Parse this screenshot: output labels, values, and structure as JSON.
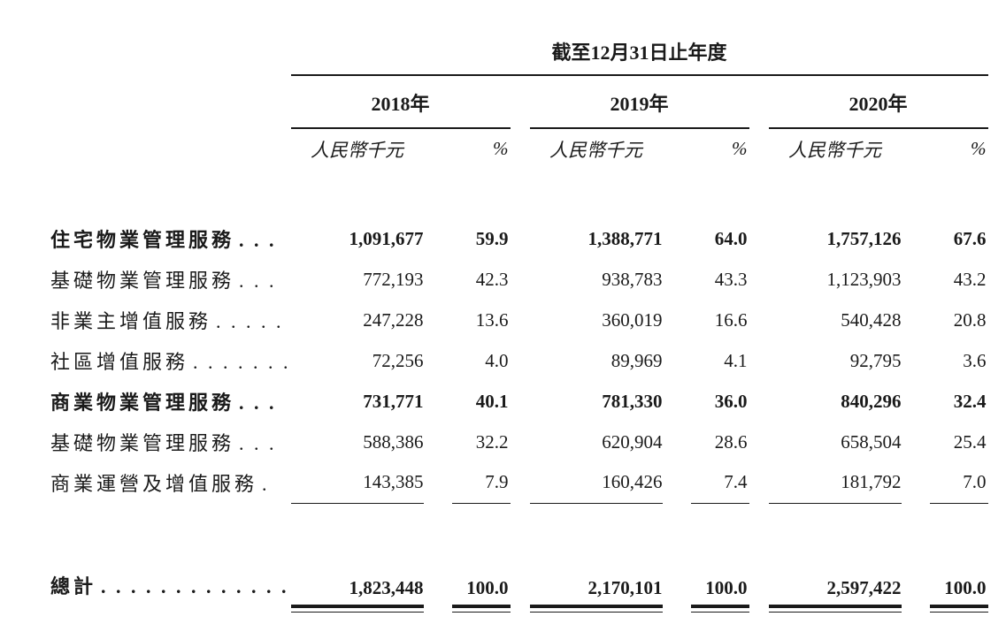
{
  "table": {
    "period_header": "截至12月31日止年度",
    "col_groups": [
      {
        "year": "2018年",
        "unit_label": "人民幣千元",
        "pct_label": "%"
      },
      {
        "year": "2019年",
        "unit_label": "人民幣千元",
        "pct_label": "%"
      },
      {
        "year": "2020年",
        "unit_label": "人民幣千元",
        "pct_label": "%"
      }
    ],
    "rows": [
      {
        "label": "住宅物業管理服務",
        "dots": ". . .",
        "bold": true,
        "values": [
          "1,091,677",
          "59.9",
          "1,388,771",
          "64.0",
          "1,757,126",
          "67.6"
        ]
      },
      {
        "label": "基礎物業管理服務",
        "dots": ". . .",
        "bold": false,
        "values": [
          "772,193",
          "42.3",
          "938,783",
          "43.3",
          "1,123,903",
          "43.2"
        ]
      },
      {
        "label": "非業主增值服務",
        "dots": ". . . . .",
        "bold": false,
        "values": [
          "247,228",
          "13.6",
          "360,019",
          "16.6",
          "540,428",
          "20.8"
        ]
      },
      {
        "label": "社區增值服務",
        "dots": ". . . . . . .",
        "bold": false,
        "values": [
          "72,256",
          "4.0",
          "89,969",
          "4.1",
          "92,795",
          "3.6"
        ]
      },
      {
        "label": "商業物業管理服務",
        "dots": ". . .",
        "bold": true,
        "values": [
          "731,771",
          "40.1",
          "781,330",
          "36.0",
          "840,296",
          "32.4"
        ]
      },
      {
        "label": "基礎物業管理服務",
        "dots": ". . .",
        "bold": false,
        "values": [
          "588,386",
          "32.2",
          "620,904",
          "28.6",
          "658,504",
          "25.4"
        ]
      },
      {
        "label": "商業運營及增值服務",
        "dots": ".",
        "bold": false,
        "values": [
          "143,385",
          "7.9",
          "160,426",
          "7.4",
          "181,792",
          "7.0"
        ]
      }
    ],
    "total_row": {
      "label": "總計",
      "dots": ". . . . . . . . . . . . .",
      "values": [
        "1,823,448",
        "100.0",
        "2,170,101",
        "100.0",
        "2,597,422",
        "100.0"
      ]
    }
  }
}
